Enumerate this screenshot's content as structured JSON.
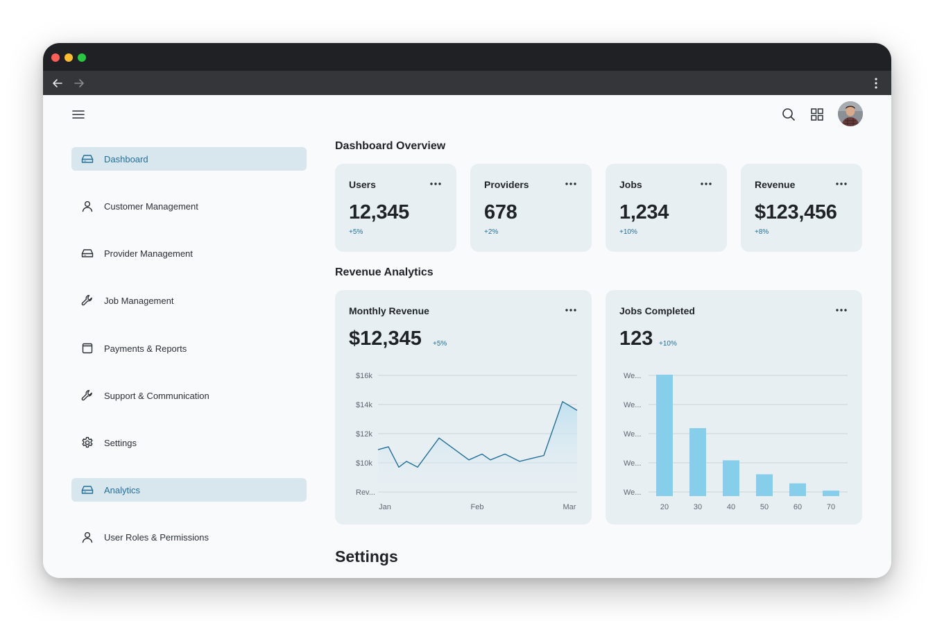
{
  "browser": {
    "traffic_lights": [
      "#ff5f57",
      "#febc2e",
      "#28c840"
    ]
  },
  "header": {
    "menu_icon": "hamburger-icon",
    "search_icon": "search-icon",
    "apps_icon": "grid-icon"
  },
  "sidebar": {
    "items": [
      {
        "label": "Dashboard",
        "icon": "drive-icon",
        "active": true
      },
      {
        "label": "Customer Management",
        "icon": "user-icon",
        "active": false
      },
      {
        "label": "Provider Management",
        "icon": "drive-icon",
        "active": false
      },
      {
        "label": "Job Management",
        "icon": "wrench-icon",
        "active": false
      },
      {
        "label": "Payments & Reports",
        "icon": "window-icon",
        "active": false
      },
      {
        "label": "Support & Communication",
        "icon": "wrench-icon",
        "active": false
      },
      {
        "label": "Settings",
        "icon": "gear-icon",
        "active": false
      },
      {
        "label": "Analytics",
        "icon": "drive-icon",
        "active": true
      },
      {
        "label": "User Roles & Permissions",
        "icon": "user-icon",
        "active": false
      }
    ]
  },
  "overview": {
    "title": "Dashboard Overview",
    "cards": [
      {
        "title": "Users",
        "value": "12,345",
        "delta": "+5%"
      },
      {
        "title": "Providers",
        "value": "678",
        "delta": "+2%"
      },
      {
        "title": "Jobs",
        "value": "1,234",
        "delta": "+10%"
      },
      {
        "title": "Revenue",
        "value": "$123,456",
        "delta": "+8%"
      }
    ]
  },
  "analytics": {
    "title": "Revenue Analytics",
    "monthly": {
      "title": "Monthly Revenue",
      "value": "$12,345",
      "delta": "+5%"
    },
    "jobs": {
      "title": "Jobs Completed",
      "value": "123",
      "delta": "+10%"
    }
  },
  "settings": {
    "title": "Settings"
  },
  "colors": {
    "accent": "#1f6f96",
    "active_bg": "#d8e6ee",
    "card_bg": "#e8eff3",
    "bar": "#87ceeb",
    "line": "#1f6f96"
  },
  "chart_data": [
    {
      "type": "area",
      "title": "",
      "x_ticks": [
        "Jan",
        "Feb",
        "Mar"
      ],
      "y_ticks": [
        "Rev...",
        "$10k",
        "$12k",
        "$14k",
        "$16k"
      ],
      "ylim": [
        8000,
        16000
      ],
      "grid": true,
      "series": [
        {
          "values": [
            10900,
            11100,
            9700,
            10100,
            9700,
            11700,
            10200,
            10600,
            10200,
            10600,
            10100,
            10500,
            14200,
            13600
          ]
        }
      ]
    },
    {
      "type": "bar",
      "title": "",
      "categories": [
        "20",
        "30",
        "40",
        "50",
        "60",
        "70"
      ],
      "y_ticks": [
        "We...",
        "We...",
        "We...",
        "We...",
        "We..."
      ],
      "ylim": [
        0,
        100
      ],
      "grid": true,
      "values": [
        100,
        56,
        29.5,
        18,
        10.5,
        4.5
      ]
    }
  ]
}
